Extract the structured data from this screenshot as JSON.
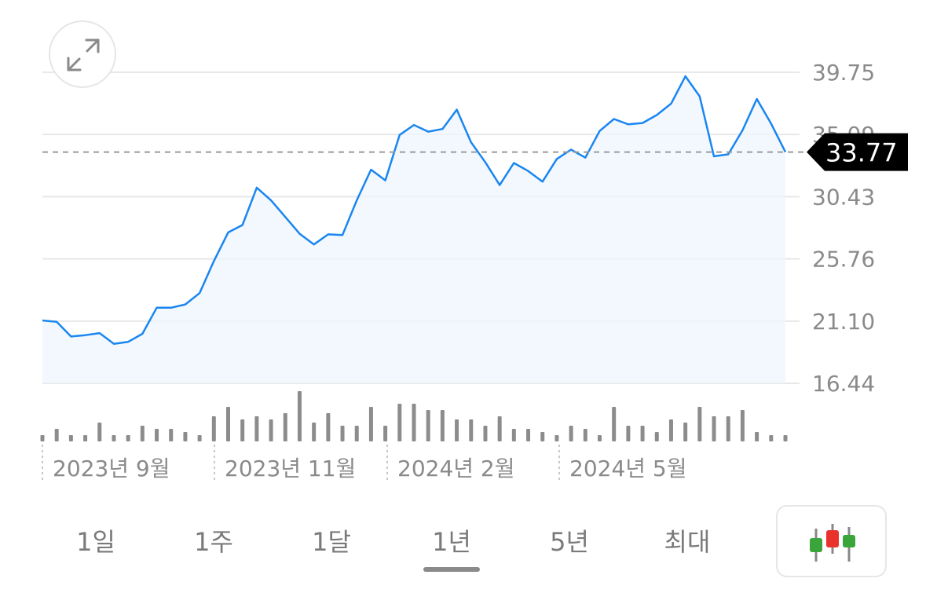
{
  "chart_data": {
    "type": "line",
    "title": "",
    "xlabel": "",
    "ylabel": "",
    "y_ticks": [
      "39.75",
      "35.09",
      "30.43",
      "25.76",
      "21.10",
      "16.44"
    ],
    "ylim": [
      16.44,
      39.75
    ],
    "x_ticks": [
      "2023년 9월",
      "2023년 11월",
      "2024년 2월",
      "2024년 5월"
    ],
    "current_value": "33.77",
    "line_color": "#1a86f0",
    "area_color": "#eef5fd",
    "volume_color": "#8c8c8c",
    "series": [
      {
        "values": [
          21.15,
          21.05,
          19.95,
          20.05,
          20.2,
          19.4,
          19.55,
          20.15,
          22.1,
          22.1,
          22.35,
          23.2,
          25.6,
          27.75,
          28.3,
          31.1,
          30.15,
          28.9,
          27.65,
          26.85,
          27.6,
          27.55,
          30.15,
          32.45,
          31.65,
          35.05,
          35.8,
          35.3,
          35.5,
          36.95,
          34.5,
          33.0,
          31.3,
          32.95,
          32.35,
          31.55,
          33.25,
          33.95,
          33.35,
          35.35,
          36.25,
          35.85,
          35.95,
          36.55,
          37.4,
          39.45,
          37.95,
          33.45,
          33.6,
          35.4,
          37.75,
          35.9,
          33.77
        ]
      }
    ],
    "volume": [
      2,
      4,
      2,
      2,
      6,
      2,
      2,
      5,
      4,
      4,
      3,
      2,
      8,
      11,
      7,
      8,
      7,
      9,
      16,
      6,
      9,
      5,
      5,
      11,
      5,
      12,
      12,
      10,
      10,
      7,
      7,
      5,
      8,
      4,
      4,
      3,
      2,
      5,
      4,
      2,
      11,
      5,
      5,
      3,
      7,
      6,
      11,
      8,
      8,
      10,
      3,
      2,
      2
    ]
  },
  "controls": {
    "expand_icon": "expand-arrows-icon",
    "range_tabs": [
      "1일",
      "1주",
      "1달",
      "1년",
      "5년",
      "최대"
    ],
    "active_tab": "1년",
    "chart_type_icon": "candlestick-icon",
    "candle_colors": [
      "#3aa53a",
      "#e8322b",
      "#3aa53a"
    ]
  }
}
